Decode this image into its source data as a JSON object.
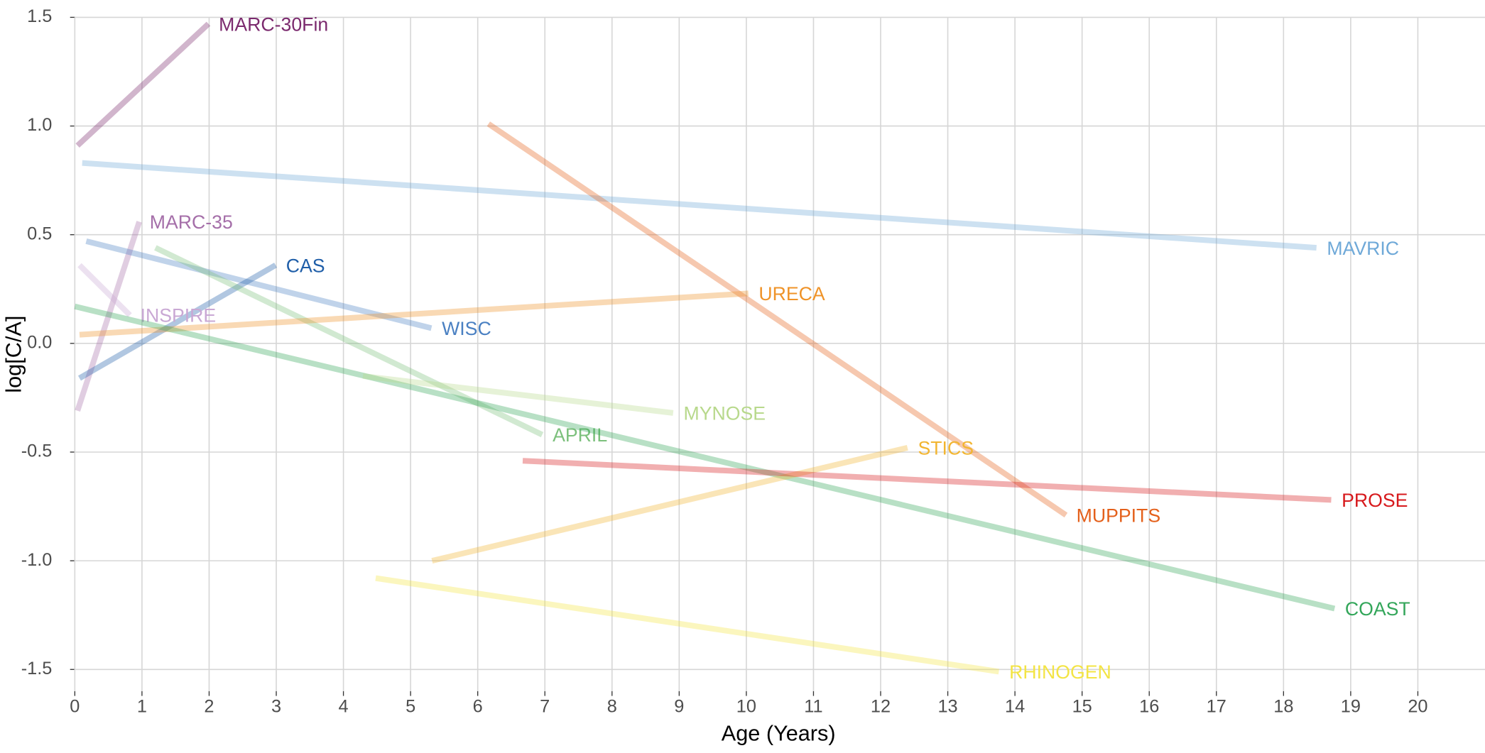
{
  "chart_data": {
    "type": "line",
    "x_label": "Age (Years)",
    "y_label": "log[C/A]",
    "xlim": [
      0,
      21
    ],
    "ylim": [
      -1.6,
      1.5
    ],
    "xticks": [
      0,
      1,
      2,
      3,
      4,
      5,
      6,
      7,
      8,
      9,
      10,
      11,
      12,
      13,
      14,
      15,
      16,
      17,
      18,
      19,
      20
    ],
    "yticks": [
      {
        "value": -1.5,
        "label": "-1.5"
      },
      {
        "value": -1.0,
        "label": "-1.0"
      },
      {
        "value": -0.5,
        "label": "-0.5"
      },
      {
        "value": 0,
        "label": "0.0"
      },
      {
        "value": 0.5,
        "label": "0.5"
      },
      {
        "value": 1.0,
        "label": "1.0"
      },
      {
        "value": 1.5,
        "label": "1.5"
      }
    ],
    "grid": true,
    "series": [
      {
        "name": "MARC-30Fin",
        "color": "#7b2a6e",
        "x": [
          0.04,
          1.99
        ],
        "values": [
          0.91,
          1.47
        ]
      },
      {
        "name": "MAVRIC",
        "color": "#6fa9d8",
        "x": [
          0.11,
          18.49
        ],
        "values": [
          0.83,
          0.44
        ]
      },
      {
        "name": "MUPPITS",
        "color": "#e4601b",
        "x": [
          6.16,
          14.76
        ],
        "values": [
          1.01,
          -0.79
        ]
      },
      {
        "name": "MARC-35",
        "color": "#a56fa9",
        "x": [
          0.04,
          0.96
        ],
        "values": [
          -0.31,
          0.56
        ]
      },
      {
        "name": "WISC",
        "color": "#4a80c2",
        "x": [
          0.17,
          5.31
        ],
        "values": [
          0.47,
          0.07
        ]
      },
      {
        "name": "CAS",
        "color": "#1f5ea8",
        "x": [
          0.07,
          2.99
        ],
        "values": [
          -0.16,
          0.36
        ]
      },
      {
        "name": "APRIL",
        "color": "#7cc07c",
        "x": [
          1.2,
          6.96
        ],
        "values": [
          0.44,
          -0.42
        ]
      },
      {
        "name": "INSPIRE",
        "color": "#c9a8d4",
        "x": [
          0.07,
          0.82
        ],
        "values": [
          0.36,
          0.13
        ]
      },
      {
        "name": "URECA",
        "color": "#ef9328",
        "x": [
          0.07,
          10.03
        ],
        "values": [
          0.04,
          0.23
        ]
      },
      {
        "name": "COAST",
        "color": "#33a65a",
        "x": [
          0,
          18.76
        ],
        "values": [
          0.17,
          -1.22
        ]
      },
      {
        "name": "MYNOSE",
        "color": "#b8d98c",
        "x": [
          4.29,
          8.91
        ],
        "values": [
          -0.15,
          -0.32
        ]
      },
      {
        "name": "STICS",
        "color": "#f2b531",
        "x": [
          5.32,
          12.4
        ],
        "values": [
          -1.0,
          -0.48
        ]
      },
      {
        "name": "PROSE",
        "color": "#d7191c",
        "x": [
          6.67,
          18.71
        ],
        "values": [
          -0.54,
          -0.72
        ]
      },
      {
        "name": "RHINOGEN",
        "color": "#f3e444",
        "x": [
          4.48,
          13.76
        ],
        "values": [
          -1.08,
          -1.51
        ]
      }
    ]
  }
}
